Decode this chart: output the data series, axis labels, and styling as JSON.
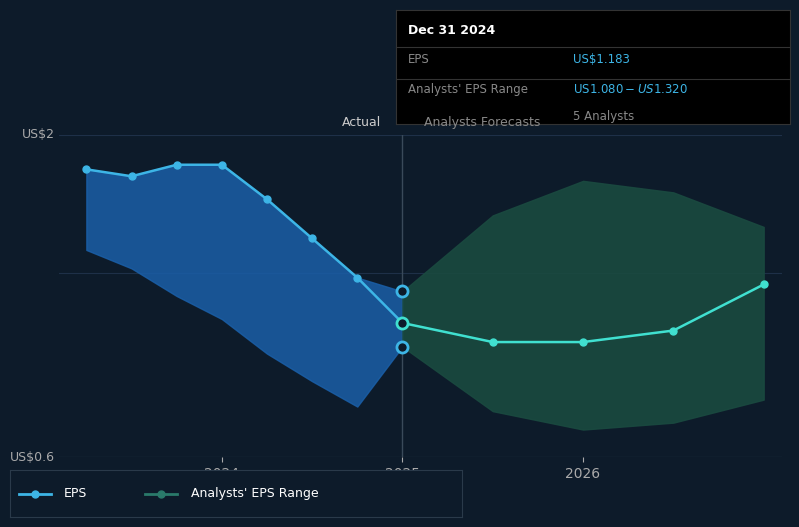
{
  "bg_color": "#0d1b2a",
  "plot_bg_color": "#0d1b2a",
  "grid_color": "#1e3048",
  "ylabel_top": "US$2",
  "ylabel_bottom": "US$0.6",
  "ymin": 0.6,
  "ymax": 2.0,
  "actual_label": "Actual",
  "forecast_label": "Analysts Forecasts",
  "divider_x": 2025.0,
  "tooltip": {
    "date": "Dec 31 2024",
    "eps": "US$1.183",
    "range": "US$1.080 - US$1.320",
    "analysts": "5 Analysts"
  },
  "actual_x": [
    2023.25,
    2023.5,
    2023.75,
    2024.0,
    2024.25,
    2024.5,
    2024.75,
    2025.0
  ],
  "actual_eps": [
    1.85,
    1.82,
    1.87,
    1.87,
    1.72,
    1.55,
    1.38,
    1.183
  ],
  "actual_upper": [
    1.85,
    1.82,
    1.87,
    1.87,
    1.72,
    1.55,
    1.38,
    1.32
  ],
  "actual_lower": [
    1.5,
    1.42,
    1.3,
    1.2,
    1.05,
    0.93,
    0.82,
    1.08
  ],
  "forecast_x": [
    2025.0,
    2025.5,
    2026.0,
    2026.5,
    2027.0
  ],
  "forecast_eps": [
    1.183,
    1.1,
    1.1,
    1.15,
    1.35
  ],
  "forecast_upper": [
    1.32,
    1.65,
    1.8,
    1.75,
    1.6
  ],
  "forecast_lower": [
    1.08,
    0.8,
    0.72,
    0.75,
    0.85
  ],
  "eps_color": "#3db5e6",
  "band_actual_color": "#1a5fa8",
  "band_forecast_color": "#1a4a40",
  "forecast_line_color": "#40e0d0",
  "tooltip_bg": "#000000",
  "tooltip_border": "#333333",
  "legend_eps_color": "#3db5e6",
  "legend_range_color": "#2a7a6a",
  "x_ticks": [
    2024,
    2025,
    2026
  ],
  "x_tick_labels": [
    "2024",
    "2025",
    "2026"
  ]
}
